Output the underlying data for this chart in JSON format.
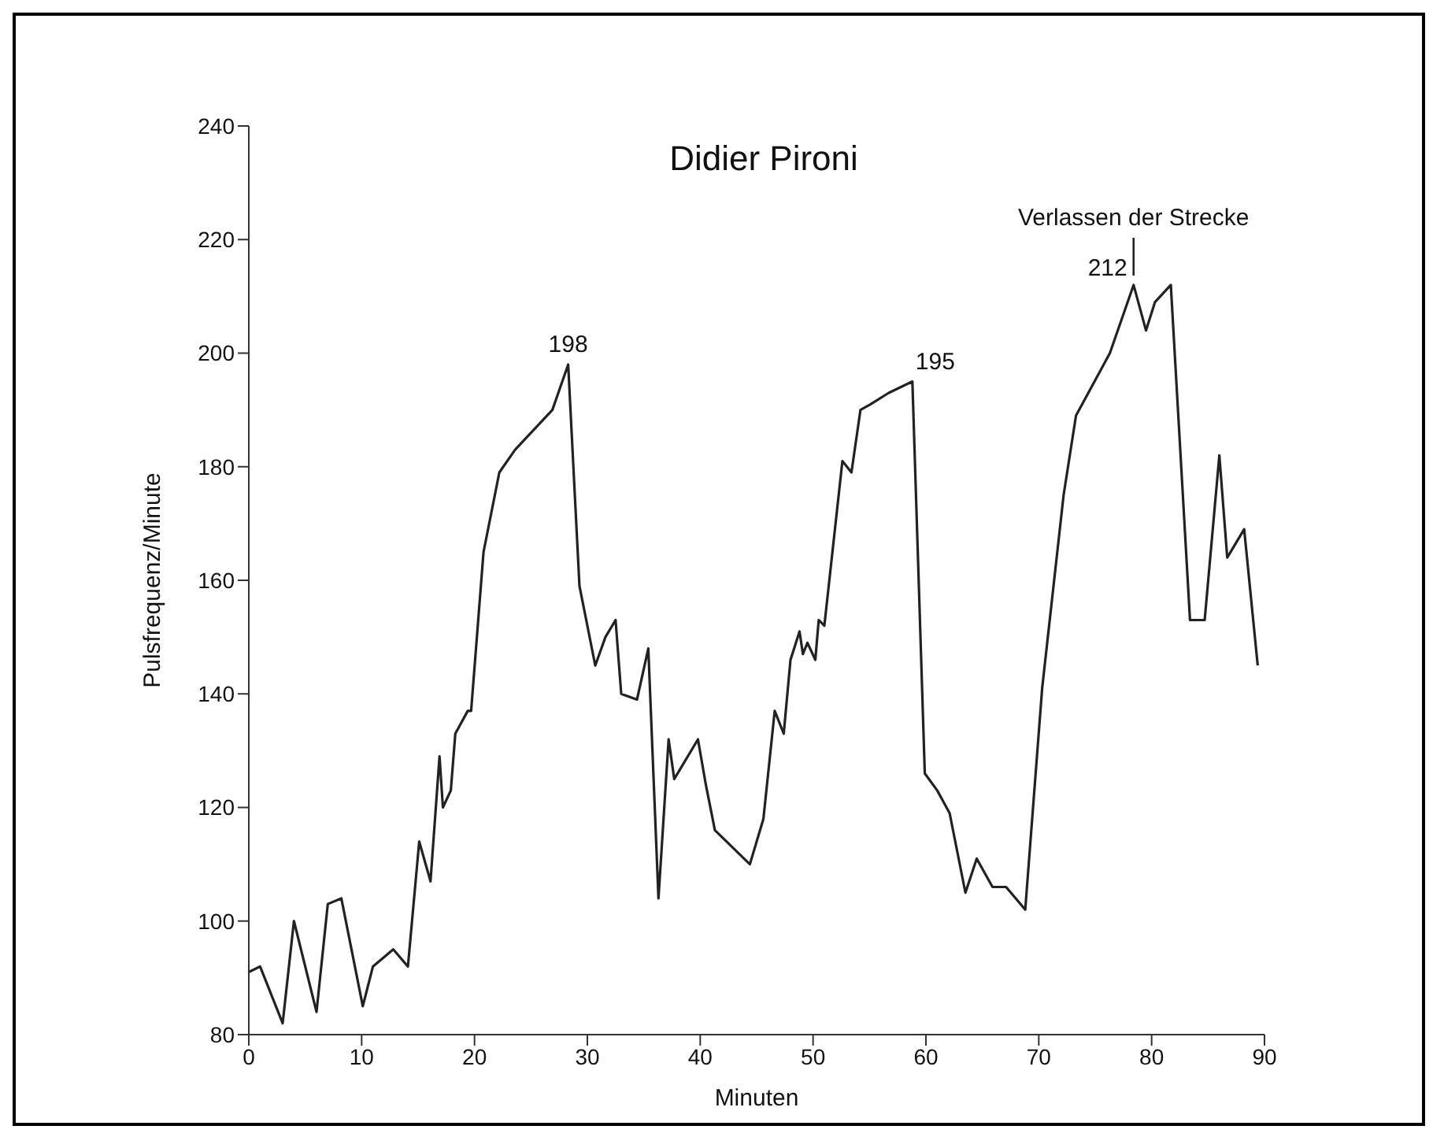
{
  "chart_data": {
    "type": "line",
    "title": "Didier Pironi",
    "xlabel": "Minuten",
    "ylabel": "Pulsfrequenz/Minute",
    "x": [
      0,
      1,
      3,
      4,
      6,
      7,
      8.2,
      10.1,
      11,
      12.8,
      14.1,
      15.1,
      16.1,
      16.9,
      17.2,
      17.9,
      18.3,
      19.4,
      19.7,
      20.8,
      22.2,
      23.6,
      26.9,
      28.3,
      29.3,
      30.7,
      31.6,
      32.5,
      33,
      34.4,
      35.4,
      36.3,
      37.2,
      37.7,
      39.8,
      40.5,
      41.3,
      44.4,
      45.6,
      46.6,
      47.4,
      48,
      48.8,
      49.1,
      49.5,
      50.2,
      50.5,
      51,
      52.6,
      53.4,
      54.2,
      55.1,
      56.7,
      58.8,
      59.9,
      61,
      62.1,
      63.5,
      64.5,
      65.9,
      67.1,
      68.8,
      70.3,
      72.2,
      73.3,
      76.3,
      78.4,
      79.5,
      80.3,
      81.7,
      83.4,
      84.7,
      86,
      86.7,
      88.2,
      89.4
    ],
    "series": [
      {
        "color": "#222222",
        "values": [
          91,
          92,
          82,
          100,
          84,
          103,
          104,
          85,
          92,
          95,
          92,
          114,
          107,
          129,
          120,
          123,
          133,
          137,
          137,
          165,
          179,
          183,
          190,
          198,
          159,
          145,
          150,
          153,
          140,
          139,
          148,
          104,
          132,
          125,
          132,
          124,
          116,
          110,
          118,
          137,
          133,
          146,
          151,
          147,
          149,
          146,
          153,
          152,
          181,
          179,
          190,
          191,
          193,
          195,
          126,
          123,
          119,
          105,
          111,
          106,
          106,
          102,
          141,
          175,
          189,
          200,
          212,
          204,
          209,
          212,
          153,
          153,
          182,
          164,
          169,
          145
        ]
      }
    ],
    "xlim": [
      0,
      90
    ],
    "xticks": [
      0,
      10,
      20,
      30,
      40,
      50,
      60,
      70,
      80,
      90
    ],
    "ylim": [
      80,
      240
    ],
    "yticks": [
      80,
      100,
      120,
      140,
      160,
      180,
      200,
      220,
      240
    ],
    "grid": false,
    "legend": false,
    "marker": "none",
    "line_style": "solid",
    "annotations": [
      {
        "text": "198",
        "x": 28.3,
        "y": 198
      },
      {
        "text": "195",
        "x": 58.8,
        "y": 195
      },
      {
        "text": "212",
        "x": 78.4,
        "y": 212
      },
      {
        "text": "Verlassen der Strecke",
        "x": 78.4,
        "y": 212
      }
    ]
  }
}
